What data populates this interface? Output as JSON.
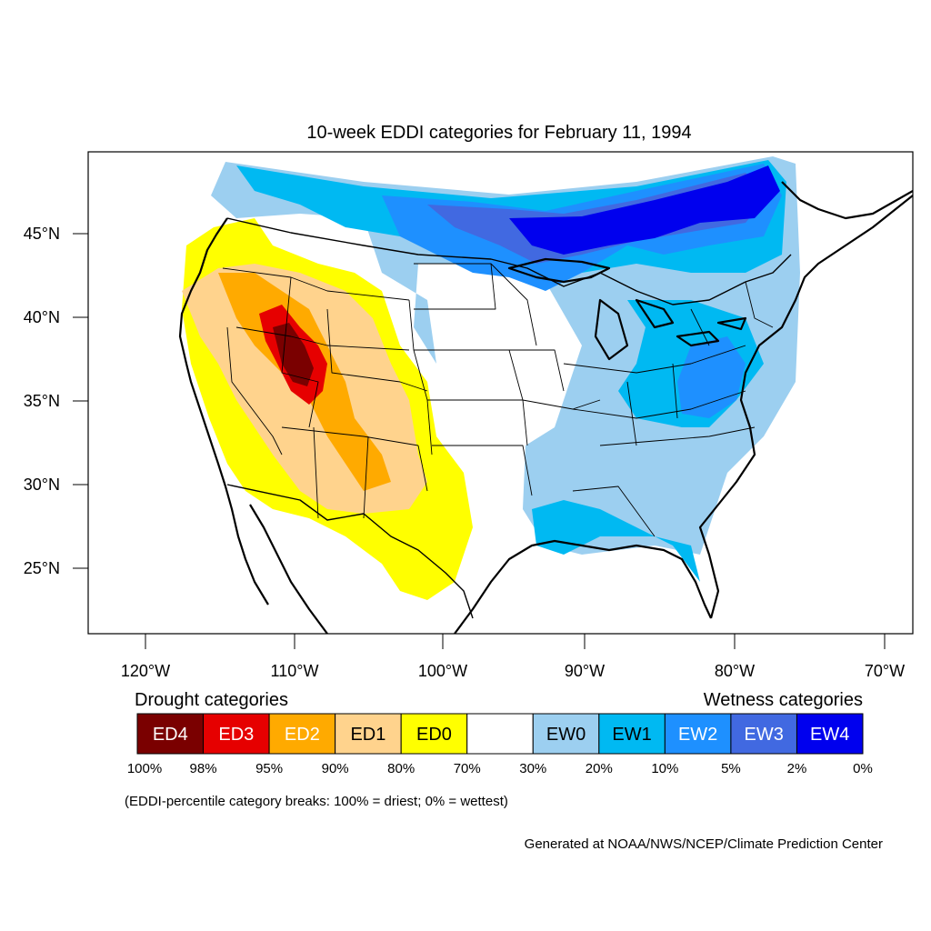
{
  "map": {
    "title": "10-week EDDI categories for February 11, 1994",
    "lat_ticks": [
      "45°N",
      "40°N",
      "35°N",
      "30°N",
      "25°N"
    ],
    "lon_ticks": [
      "120°W",
      "110°W",
      "100°W",
      "90°W",
      "80°W",
      "70°W"
    ]
  },
  "legend": {
    "drought_title": "Drought categories",
    "wetness_title": "Wetness categories",
    "categories": [
      {
        "label": "ED4",
        "color": "#7a0000",
        "text_color": "#ffffff"
      },
      {
        "label": "ED3",
        "color": "#e60000",
        "text_color": "#ffffff"
      },
      {
        "label": "ED2",
        "color": "#ffaa00",
        "text_color": "#ffffff"
      },
      {
        "label": "ED1",
        "color": "#ffd38d",
        "text_color": "#000000"
      },
      {
        "label": "ED0",
        "color": "#ffff00",
        "text_color": "#000000"
      },
      {
        "label": "",
        "color": "#ffffff",
        "text_color": "#000000"
      },
      {
        "label": "EW0",
        "color": "#9ccff0",
        "text_color": "#000000"
      },
      {
        "label": "EW1",
        "color": "#00b9f2",
        "text_color": "#000000"
      },
      {
        "label": "EW2",
        "color": "#1e90ff",
        "text_color": "#ffffff"
      },
      {
        "label": "EW3",
        "color": "#4169e1",
        "text_color": "#ffffff"
      },
      {
        "label": "EW4",
        "color": "#0000ee",
        "text_color": "#ffffff"
      }
    ],
    "breaks": [
      "100%",
      "98%",
      "95%",
      "90%",
      "80%",
      "70%",
      "30%",
      "20%",
      "10%",
      "5%",
      "2%",
      "0%"
    ],
    "note": "(EDDI-percentile category breaks: 100% = driest; 0% = wettest)"
  },
  "footer": {
    "credit": "Generated at NOAA/NWS/NCEP/Climate Prediction Center"
  }
}
